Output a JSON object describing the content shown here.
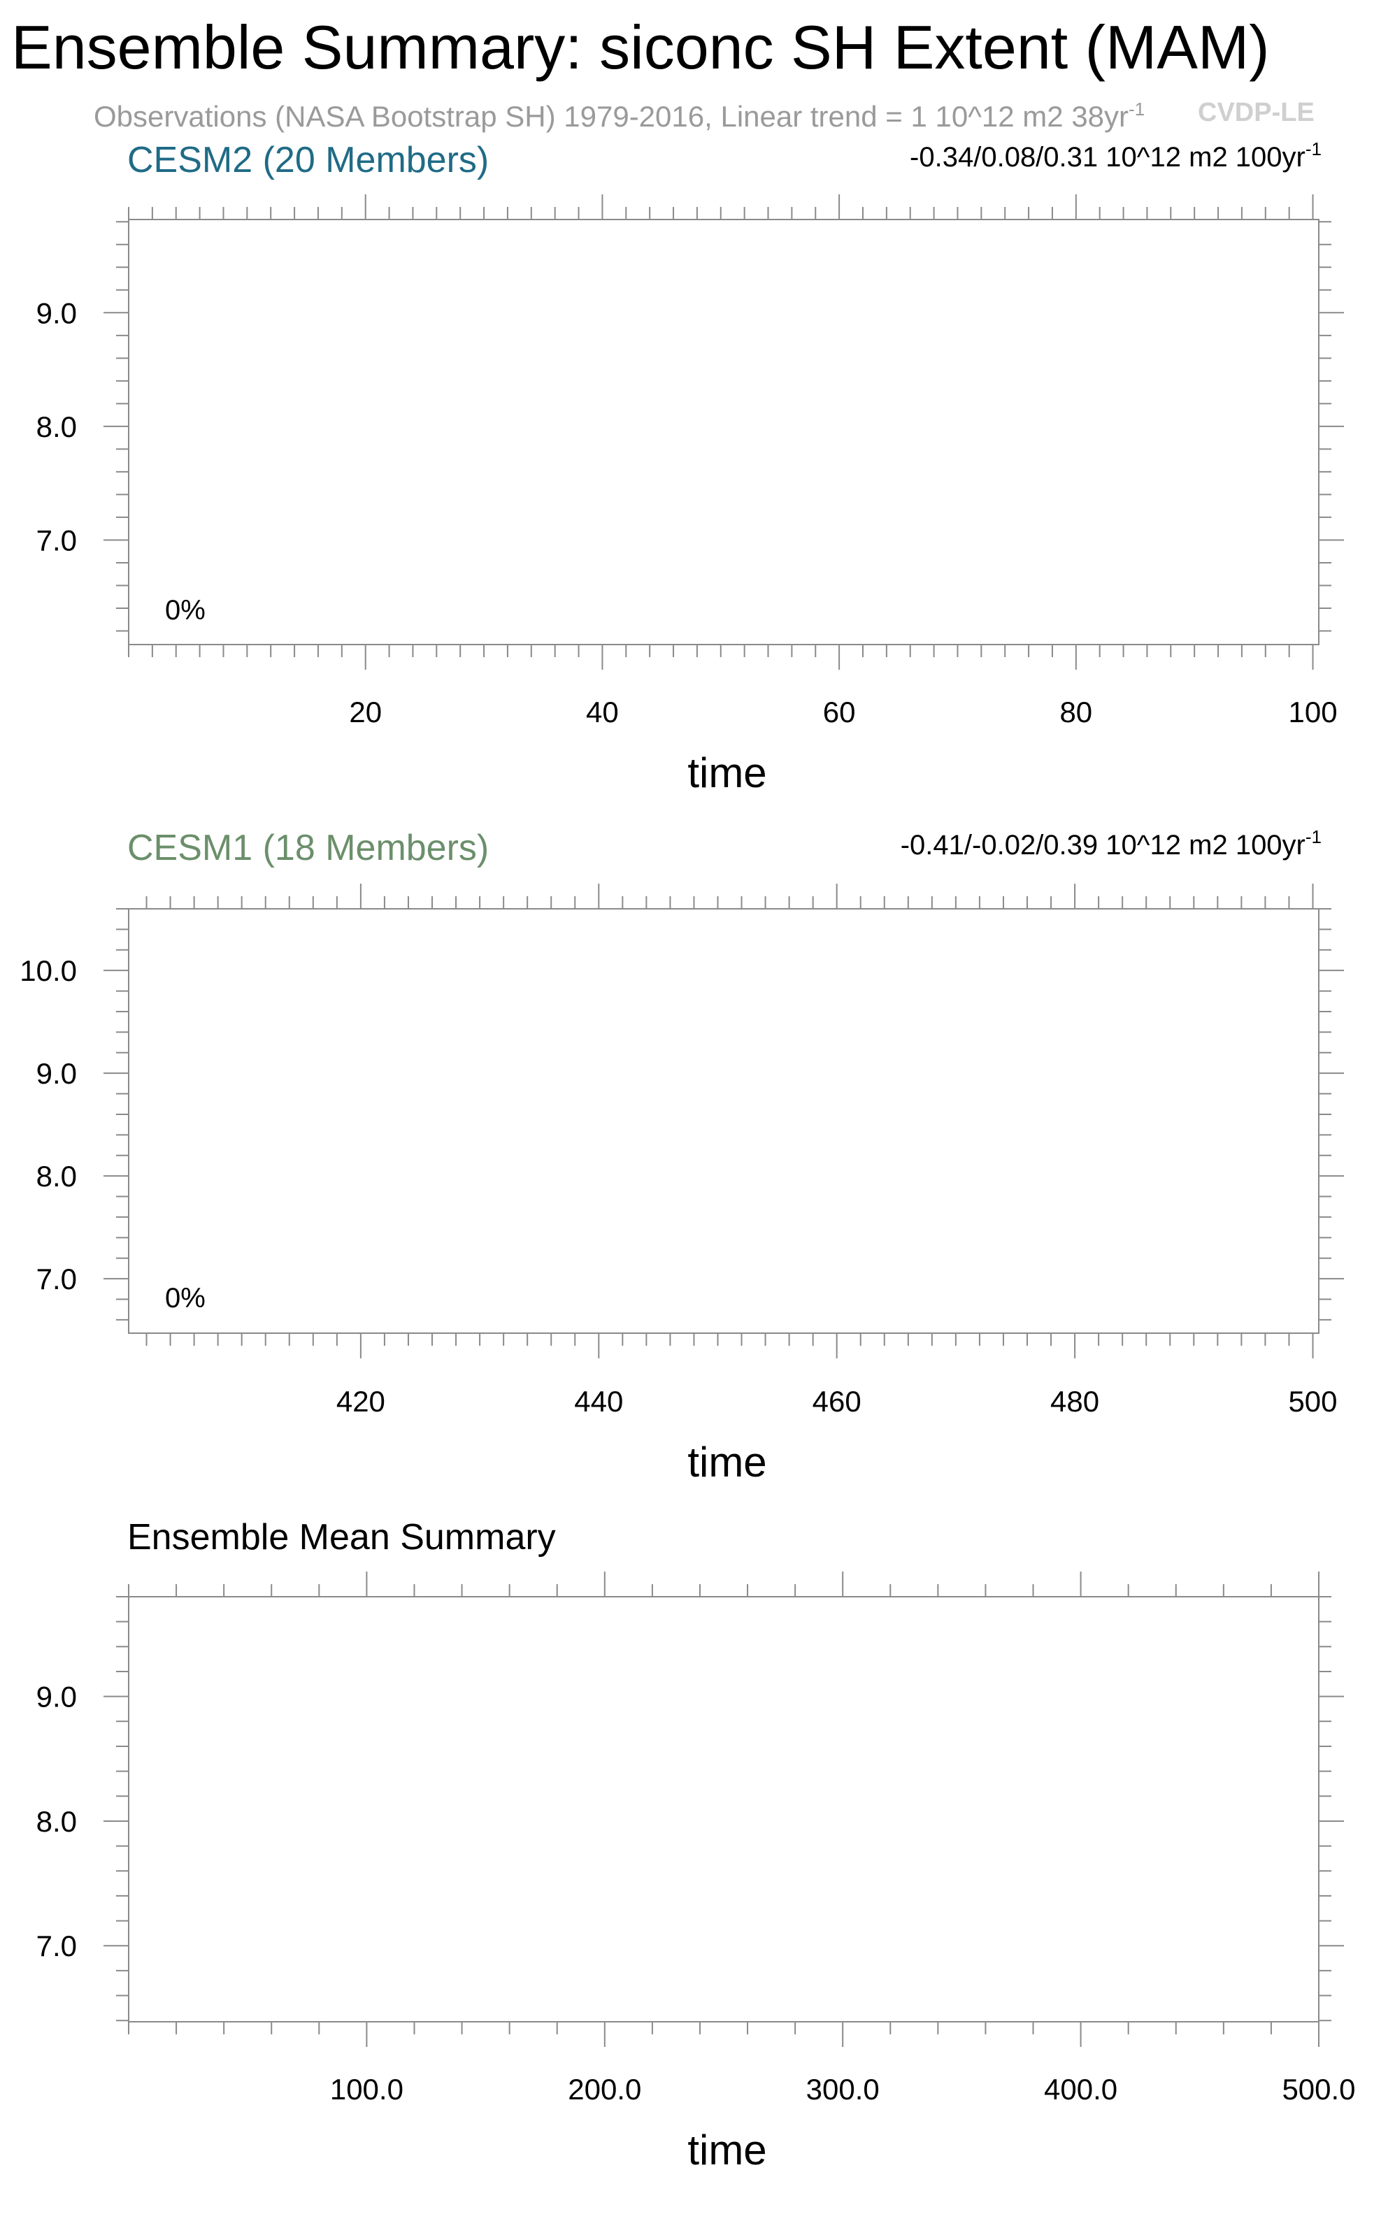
{
  "title": "Ensemble Summary: siconc SH Extent (MAM)",
  "observations_line": {
    "text": "Observations (NASA Bootstrap SH) 1979-2016, Linear trend = 1 10^12 m2 38yr",
    "superscript": "-1"
  },
  "watermark": "CVDP-LE",
  "colors": {
    "cesm2": "#1f6b86",
    "cesm1": "#6b8f6b",
    "frame": "#8a8a8a",
    "subtitle": "#9a9a9a",
    "watermark": "#cfcfcf"
  },
  "chart_data": [
    {
      "type": "line",
      "title": "CESM2 (20 Members)",
      "title_color": "#1f6b86",
      "trend_text": "-0.34/0.08/0.31 10^12 m2 100yr",
      "trend_superscript": "-1",
      "percent_label": "0%",
      "xlabel": "time",
      "ylabel": "",
      "xlim": [
        0,
        100.5
      ],
      "ylim": [
        6.08,
        9.82
      ],
      "xticks": [
        20,
        40,
        60,
        80,
        100
      ],
      "xtick_labels": [
        "20",
        "40",
        "60",
        "80",
        "100"
      ],
      "x_minor": 2,
      "yticks": [
        7.0,
        8.0,
        9.0
      ],
      "ytick_labels": [
        "7.0",
        "8.0",
        "9.0"
      ],
      "y_minor": 0.2,
      "series": []
    },
    {
      "type": "line",
      "title": "CESM1 (18 Members)",
      "title_color": "#6b8f6b",
      "trend_text": "-0.41/-0.02/0.39 10^12 m2 100yr",
      "trend_superscript": "-1",
      "percent_label": "0%",
      "xlabel": "time",
      "ylabel": "",
      "xlim": [
        400.5,
        500.5
      ],
      "ylim": [
        6.47,
        10.6
      ],
      "xticks": [
        420,
        440,
        460,
        480,
        500
      ],
      "xtick_labels": [
        "420",
        "440",
        "460",
        "480",
        "500"
      ],
      "x_minor": 2,
      "yticks": [
        7.0,
        8.0,
        9.0,
        10.0
      ],
      "ytick_labels": [
        "7.0",
        "8.0",
        "9.0",
        "10.0"
      ],
      "y_minor": 0.2,
      "series": []
    },
    {
      "type": "line",
      "title": "Ensemble Mean Summary",
      "title_color": "#000000",
      "trend_text": "",
      "trend_superscript": "",
      "percent_label": "",
      "xlabel": "time",
      "ylabel": "",
      "xlim": [
        0,
        500
      ],
      "ylim": [
        6.39,
        9.8
      ],
      "xticks": [
        100,
        200,
        300,
        400,
        500
      ],
      "xtick_labels": [
        "100.0",
        "200.0",
        "300.0",
        "400.0",
        "500.0"
      ],
      "x_minor": 20,
      "yticks": [
        7.0,
        8.0,
        9.0
      ],
      "ytick_labels": [
        "7.0",
        "8.0",
        "9.0"
      ],
      "y_minor": 0.2,
      "series": []
    }
  ]
}
